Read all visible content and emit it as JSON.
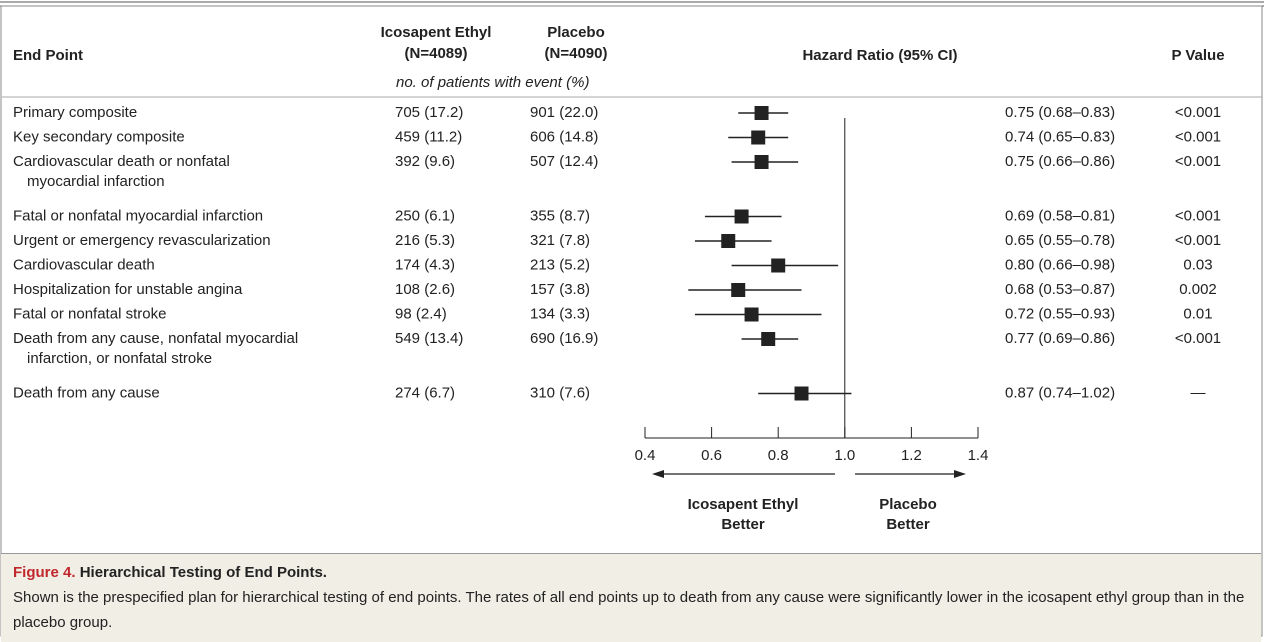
{
  "chart_data": {
    "type": "forest",
    "header": {
      "end_point": "End Point",
      "icosapent": [
        "Icosapent Ethyl",
        "(N=4089)"
      ],
      "placebo": [
        "Placebo",
        "(N=4090)"
      ],
      "events_note": "no. of patients with event (%)",
      "hazard_ratio": "Hazard Ratio (95% CI)",
      "p_value": "P Value"
    },
    "rows": [
      {
        "end_point": [
          "Primary composite"
        ],
        "icosapent": "705 (17.2)",
        "placebo": "901 (22.0)",
        "hr": 0.75,
        "lower": 0.68,
        "upper": 0.83,
        "hr_label": "0.75 (0.68–0.83)",
        "p": "<0.001"
      },
      {
        "end_point": [
          "Key secondary composite"
        ],
        "icosapent": "459 (11.2)",
        "placebo": "606 (14.8)",
        "hr": 0.74,
        "lower": 0.65,
        "upper": 0.83,
        "hr_label": "0.74 (0.65–0.83)",
        "p": "<0.001"
      },
      {
        "end_point": [
          "Cardiovascular death or nonfatal",
          "myocardial infarction"
        ],
        "icosapent": "392 (9.6)",
        "placebo": "507 (12.4)",
        "hr": 0.75,
        "lower": 0.66,
        "upper": 0.86,
        "hr_label": "0.75 (0.66–0.86)",
        "p": "<0.001"
      },
      {
        "end_point": [
          "Fatal or nonfatal myocardial infarction"
        ],
        "icosapent": "250 (6.1)",
        "placebo": "355 (8.7)",
        "hr": 0.69,
        "lower": 0.58,
        "upper": 0.81,
        "hr_label": "0.69 (0.58–0.81)",
        "p": "<0.001"
      },
      {
        "end_point": [
          "Urgent or emergency revascularization"
        ],
        "icosapent": "216 (5.3)",
        "placebo": "321 (7.8)",
        "hr": 0.65,
        "lower": 0.55,
        "upper": 0.78,
        "hr_label": "0.65 (0.55–0.78)",
        "p": "<0.001"
      },
      {
        "end_point": [
          "Cardiovascular death"
        ],
        "icosapent": "174 (4.3)",
        "placebo": "213 (5.2)",
        "hr": 0.8,
        "lower": 0.66,
        "upper": 0.98,
        "hr_label": "0.80 (0.66–0.98)",
        "p": "0.03"
      },
      {
        "end_point": [
          "Hospitalization for unstable angina"
        ],
        "icosapent": "108 (2.6)",
        "placebo": "157 (3.8)",
        "hr": 0.68,
        "lower": 0.53,
        "upper": 0.87,
        "hr_label": "0.68 (0.53–0.87)",
        "p": "0.002"
      },
      {
        "end_point": [
          "Fatal or nonfatal stroke"
        ],
        "icosapent": "98 (2.4)",
        "placebo": "134 (3.3)",
        "hr": 0.72,
        "lower": 0.55,
        "upper": 0.93,
        "hr_label": "0.72 (0.55–0.93)",
        "p": "0.01"
      },
      {
        "end_point": [
          "Death from any cause, nonfatal myocardial",
          "infarction, or nonfatal stroke"
        ],
        "icosapent": "549 (13.4)",
        "placebo": "690 (16.9)",
        "hr": 0.77,
        "lower": 0.69,
        "upper": 0.86,
        "hr_label": "0.77 (0.69–0.86)",
        "p": "<0.001"
      },
      {
        "end_point": [
          "Death from any cause"
        ],
        "icosapent": "274 (6.7)",
        "placebo": "310 (7.6)",
        "hr": 0.87,
        "lower": 0.74,
        "upper": 1.02,
        "hr_label": "0.87 (0.74–1.02)",
        "p": "—"
      }
    ],
    "xlim": [
      0.4,
      1.4
    ],
    "xticks": [
      0.4,
      0.6,
      0.8,
      {
        "value": 1,
        "label": "1.0"
      },
      1.2,
      1.4
    ],
    "reference_line": 1,
    "favors": [
      [
        "Icosapent Ethyl",
        "Better"
      ],
      [
        "Placebo",
        "Better"
      ]
    ],
    "caption": {
      "label": "Figure 4.",
      "title": "Hierarchical Testing of End Points.",
      "text": "Shown is the prespecified plan for hierarchical testing of end points. The rates of all end points up to death from any cause were significantly lower in the icosapent ethyl group than in the placebo group."
    }
  }
}
